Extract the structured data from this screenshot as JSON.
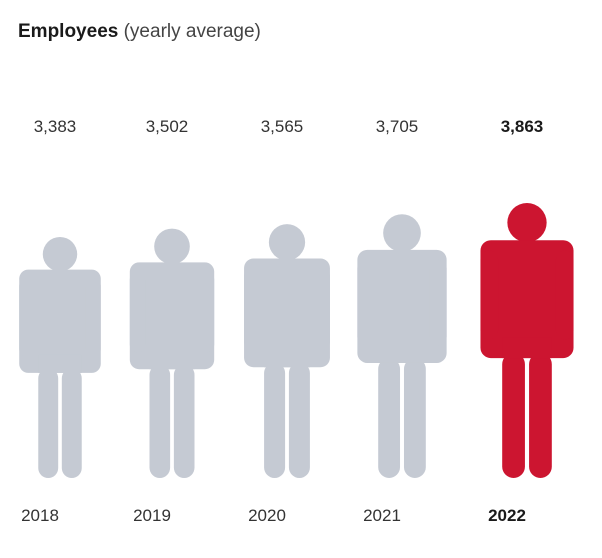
{
  "title": "Employees",
  "subtitle": "(yearly average)",
  "chart_data": {
    "type": "bar",
    "title": "Employees",
    "subtitle": "(yearly average)",
    "categories": [
      "2018",
      "2019",
      "2020",
      "2021",
      "2022"
    ],
    "values": [
      3383,
      3502,
      3565,
      3705,
      3863
    ],
    "value_labels": [
      "3,383",
      "3,502",
      "3,565",
      "3,705",
      "3,863"
    ],
    "highlight_index": 4,
    "colors": {
      "default": "#c5cad3",
      "highlight": "#cc1530"
    },
    "mark_shape": "person-pictogram"
  }
}
